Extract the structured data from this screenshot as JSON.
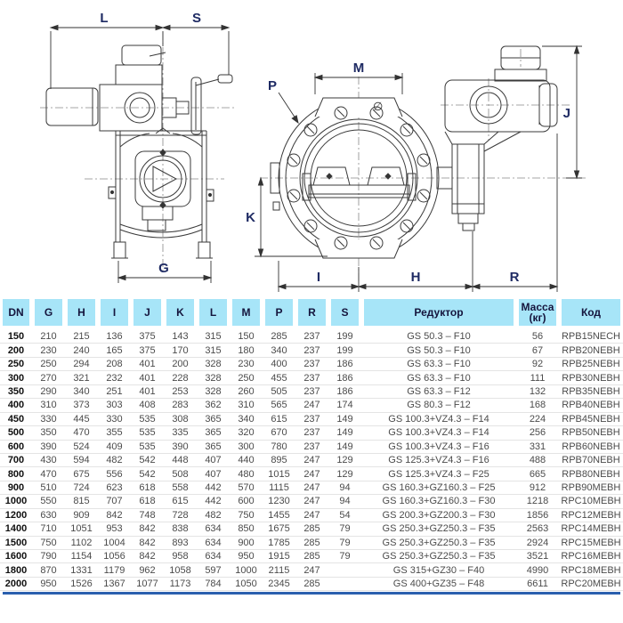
{
  "diagram": {
    "labels": {
      "l": "L",
      "s": "S",
      "m": "M",
      "p": "P",
      "j": "J",
      "k": "K",
      "g": "G",
      "i": "I",
      "h": "H",
      "r": "R",
      "diameter": "∅"
    }
  },
  "table": {
    "headers": [
      "DN",
      "G",
      "H",
      "I",
      "J",
      "K",
      "L",
      "M",
      "P",
      "R",
      "S",
      "Редуктор",
      "Масса\n(кг)",
      "Код"
    ],
    "rows": [
      [
        "150",
        "210",
        "215",
        "136",
        "375",
        "143",
        "315",
        "150",
        "285",
        "237",
        "199",
        "GS 50.3 – F10",
        "56",
        "RPB15NECH"
      ],
      [
        "200",
        "230",
        "240",
        "165",
        "375",
        "170",
        "315",
        "180",
        "340",
        "237",
        "199",
        "GS 50.3 – F10",
        "67",
        "RPB20NEBH"
      ],
      [
        "250",
        "250",
        "294",
        "208",
        "401",
        "200",
        "328",
        "230",
        "400",
        "237",
        "186",
        "GS 63.3 – F10",
        "92",
        "RPB25NEBH"
      ],
      [
        "300",
        "270",
        "321",
        "232",
        "401",
        "228",
        "328",
        "250",
        "455",
        "237",
        "186",
        "GS 63.3 – F10",
        "111",
        "RPB30NEBH"
      ],
      [
        "350",
        "290",
        "340",
        "251",
        "401",
        "253",
        "328",
        "260",
        "505",
        "237",
        "186",
        "GS 63.3 – F12",
        "132",
        "RPB35NEBH"
      ],
      [
        "400",
        "310",
        "373",
        "303",
        "408",
        "283",
        "362",
        "310",
        "565",
        "247",
        "174",
        "GS 80.3 – F12",
        "168",
        "RPB40NEBH"
      ],
      [
        "450",
        "330",
        "445",
        "330",
        "535",
        "308",
        "365",
        "340",
        "615",
        "237",
        "149",
        "GS 100.3+VZ4.3 – F14",
        "224",
        "RPB45NEBH"
      ],
      [
        "500",
        "350",
        "470",
        "355",
        "535",
        "335",
        "365",
        "320",
        "670",
        "237",
        "149",
        "GS 100.3+VZ4.3 – F14",
        "256",
        "RPB50NEBH"
      ],
      [
        "600",
        "390",
        "524",
        "409",
        "535",
        "390",
        "365",
        "300",
        "780",
        "237",
        "149",
        "GS 100.3+VZ4.3 – F16",
        "331",
        "RPB60NEBH"
      ],
      [
        "700",
        "430",
        "594",
        "482",
        "542",
        "448",
        "407",
        "440",
        "895",
        "247",
        "129",
        "GS 125.3+VZ4.3 – F16",
        "488",
        "RPB70NEBH"
      ],
      [
        "800",
        "470",
        "675",
        "556",
        "542",
        "508",
        "407",
        "480",
        "1015",
        "247",
        "129",
        "GS 125.3+VZ4.3 – F25",
        "665",
        "RPB80NEBH"
      ],
      [
        "900",
        "510",
        "724",
        "623",
        "618",
        "558",
        "442",
        "570",
        "1115",
        "247",
        "94",
        "GS 160.3+GZ160.3 – F25",
        "912",
        "RPB90MEBH"
      ],
      [
        "1000",
        "550",
        "815",
        "707",
        "618",
        "615",
        "442",
        "600",
        "1230",
        "247",
        "94",
        "GS 160.3+GZ160.3 – F30",
        "1218",
        "RPC10MEBH"
      ],
      [
        "1200",
        "630",
        "909",
        "842",
        "748",
        "728",
        "482",
        "750",
        "1455",
        "247",
        "54",
        "GS 200.3+GZ200.3 – F30",
        "1856",
        "RPC12MEBH"
      ],
      [
        "1400",
        "710",
        "1051",
        "953",
        "842",
        "838",
        "634",
        "850",
        "1675",
        "285",
        "79",
        "GS 250.3+GZ250.3 – F35",
        "2563",
        "RPC14MEBH"
      ],
      [
        "1500",
        "750",
        "1102",
        "1004",
        "842",
        "893",
        "634",
        "900",
        "1785",
        "285",
        "79",
        "GS 250.3+GZ250.3 – F35",
        "2924",
        "RPC15MEBH"
      ],
      [
        "1600",
        "790",
        "1154",
        "1056",
        "842",
        "958",
        "634",
        "950",
        "1915",
        "285",
        "79",
        "GS 250.3+GZ250.3 – F35",
        "3521",
        "RPC16MEBH"
      ],
      [
        "1800",
        "870",
        "1331",
        "1179",
        "962",
        "1058",
        "597",
        "1000",
        "2115",
        "247",
        "",
        "GS 315+GZ30 – F40",
        "4990",
        "RPC18MEBH"
      ],
      [
        "2000",
        "950",
        "1526",
        "1367",
        "1077",
        "1173",
        "784",
        "1050",
        "2345",
        "285",
        "",
        "GS 400+GZ35 – F48",
        "6611",
        "RPC20MEBH"
      ]
    ]
  }
}
